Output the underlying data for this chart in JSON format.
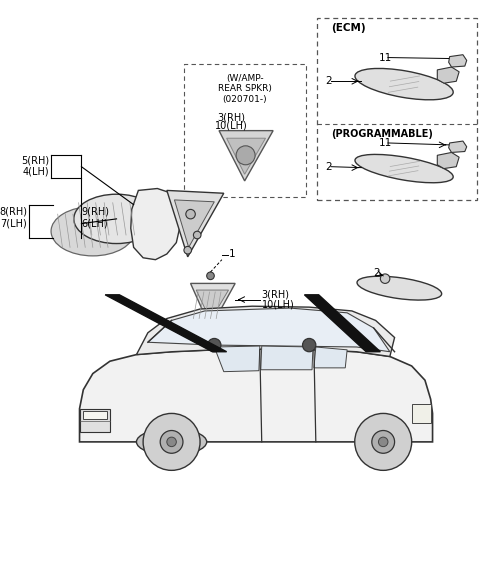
{
  "bg_color": "#ffffff",
  "labels": {
    "ecm_box": "(ECM)",
    "programmable_box": "(PROGRAMMABLE)",
    "wamp_box": "(W/AMP-\nREAR SPKR)\n(020701-)",
    "part1": "1",
    "part2": "2",
    "part3rh": "3(RH)",
    "part10lh": "10(LH)",
    "part4lh": "4(LH)",
    "part5rh": "5(RH)",
    "part6lh": "6(LH)",
    "part7lh": "7(LH)",
    "part8rh": "8(RH)",
    "part9rh": "9(RH)",
    "part11": "11",
    "part2_ecm": "2",
    "part11_prog": "11",
    "part2_prog": "2"
  },
  "figsize": [
    4.8,
    5.82
  ],
  "dpi": 100
}
